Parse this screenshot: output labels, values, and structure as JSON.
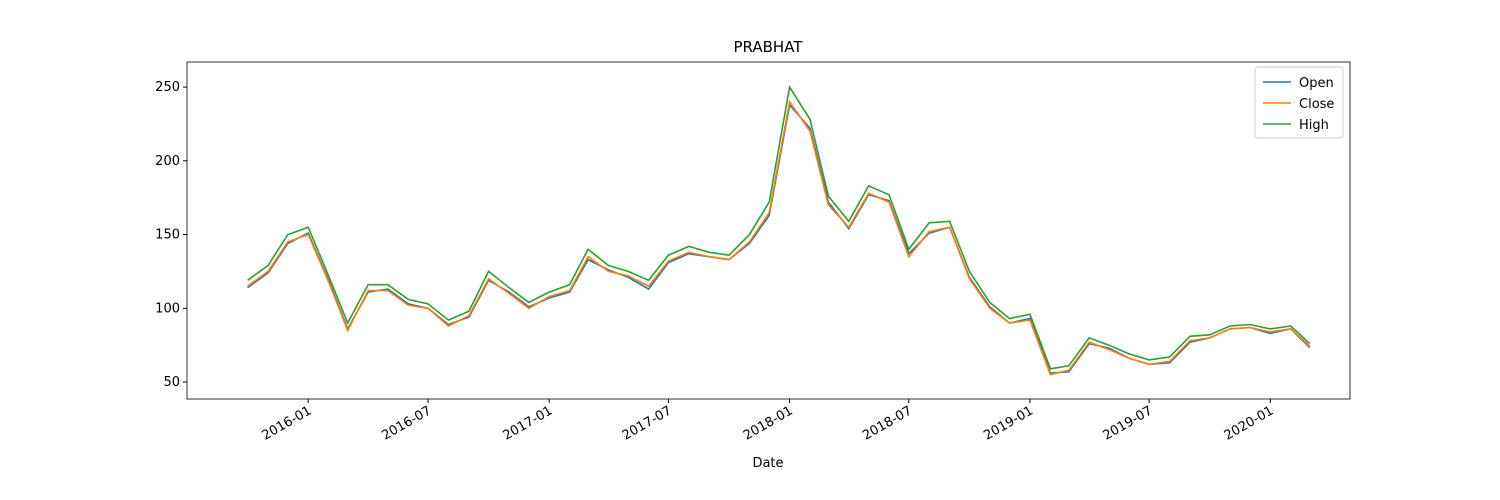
{
  "chart_data": {
    "type": "line",
    "title": "PRABHAT",
    "xlabel": "Date",
    "x": [
      "2015-10",
      "2015-11",
      "2015-12",
      "2016-01",
      "2016-02",
      "2016-03",
      "2016-04",
      "2016-05",
      "2016-06",
      "2016-07",
      "2016-08",
      "2016-09",
      "2016-10",
      "2016-11",
      "2016-12",
      "2017-01",
      "2017-02",
      "2017-03",
      "2017-04",
      "2017-05",
      "2017-06",
      "2017-07",
      "2017-08",
      "2017-09",
      "2017-10",
      "2017-11",
      "2017-12",
      "2018-01",
      "2018-02",
      "2018-03",
      "2018-04",
      "2018-05",
      "2018-06",
      "2018-07",
      "2018-08",
      "2018-09",
      "2018-10",
      "2018-11",
      "2018-12",
      "2019-01",
      "2019-02",
      "2019-03",
      "2019-04",
      "2019-05",
      "2019-06",
      "2019-07",
      "2019-08",
      "2019-09",
      "2019-10",
      "2019-11",
      "2019-12",
      "2020-01",
      "2020-02",
      "2020-03"
    ],
    "series": [
      {
        "name": "Open",
        "color": "#1f77b4",
        "values": [
          114,
          124,
          144,
          151,
          119,
          86,
          111,
          113,
          103,
          100,
          89,
          94,
          119,
          111,
          101,
          107,
          111,
          133,
          126,
          121,
          113,
          131,
          137,
          135,
          133,
          144,
          163,
          238,
          222,
          172,
          154,
          177,
          173,
          137,
          151,
          155,
          121,
          101,
          90,
          93,
          56,
          57,
          76,
          73,
          66,
          62,
          63,
          77,
          80,
          86,
          87,
          83,
          86,
          74
        ]
      },
      {
        "name": "Close",
        "color": "#ff7f0e",
        "values": [
          115,
          125,
          145,
          150,
          118,
          85,
          112,
          112,
          102,
          100,
          88,
          95,
          120,
          110,
          100,
          108,
          112,
          135,
          125,
          122,
          115,
          132,
          138,
          135,
          133,
          145,
          165,
          240,
          220,
          170,
          155,
          178,
          172,
          135,
          152,
          155,
          120,
          100,
          90,
          92,
          55,
          58,
          77,
          72,
          66,
          62,
          64,
          78,
          80,
          86,
          87,
          84,
          86,
          73
        ]
      },
      {
        "name": "High",
        "color": "#2ca02c",
        "values": [
          119,
          129,
          150,
          155,
          122,
          90,
          116,
          116,
          106,
          103,
          92,
          98,
          125,
          114,
          104,
          111,
          116,
          140,
          129,
          125,
          119,
          136,
          142,
          138,
          136,
          150,
          172,
          250,
          228,
          176,
          159,
          183,
          177,
          140,
          158,
          159,
          125,
          104,
          93,
          96,
          59,
          61,
          80,
          75,
          69,
          65,
          67,
          81,
          82,
          88,
          89,
          86,
          88,
          76
        ]
      }
    ],
    "xlim": [
      "2015-07",
      "2020-05"
    ],
    "xticks": [
      "2016-01",
      "2016-07",
      "2017-01",
      "2017-07",
      "2018-01",
      "2018-07",
      "2019-01",
      "2019-07",
      "2020-01"
    ],
    "ylim": [
      38.5,
      267
    ],
    "yticks": [
      50,
      100,
      150,
      200,
      250
    ],
    "legend": "upper right"
  }
}
